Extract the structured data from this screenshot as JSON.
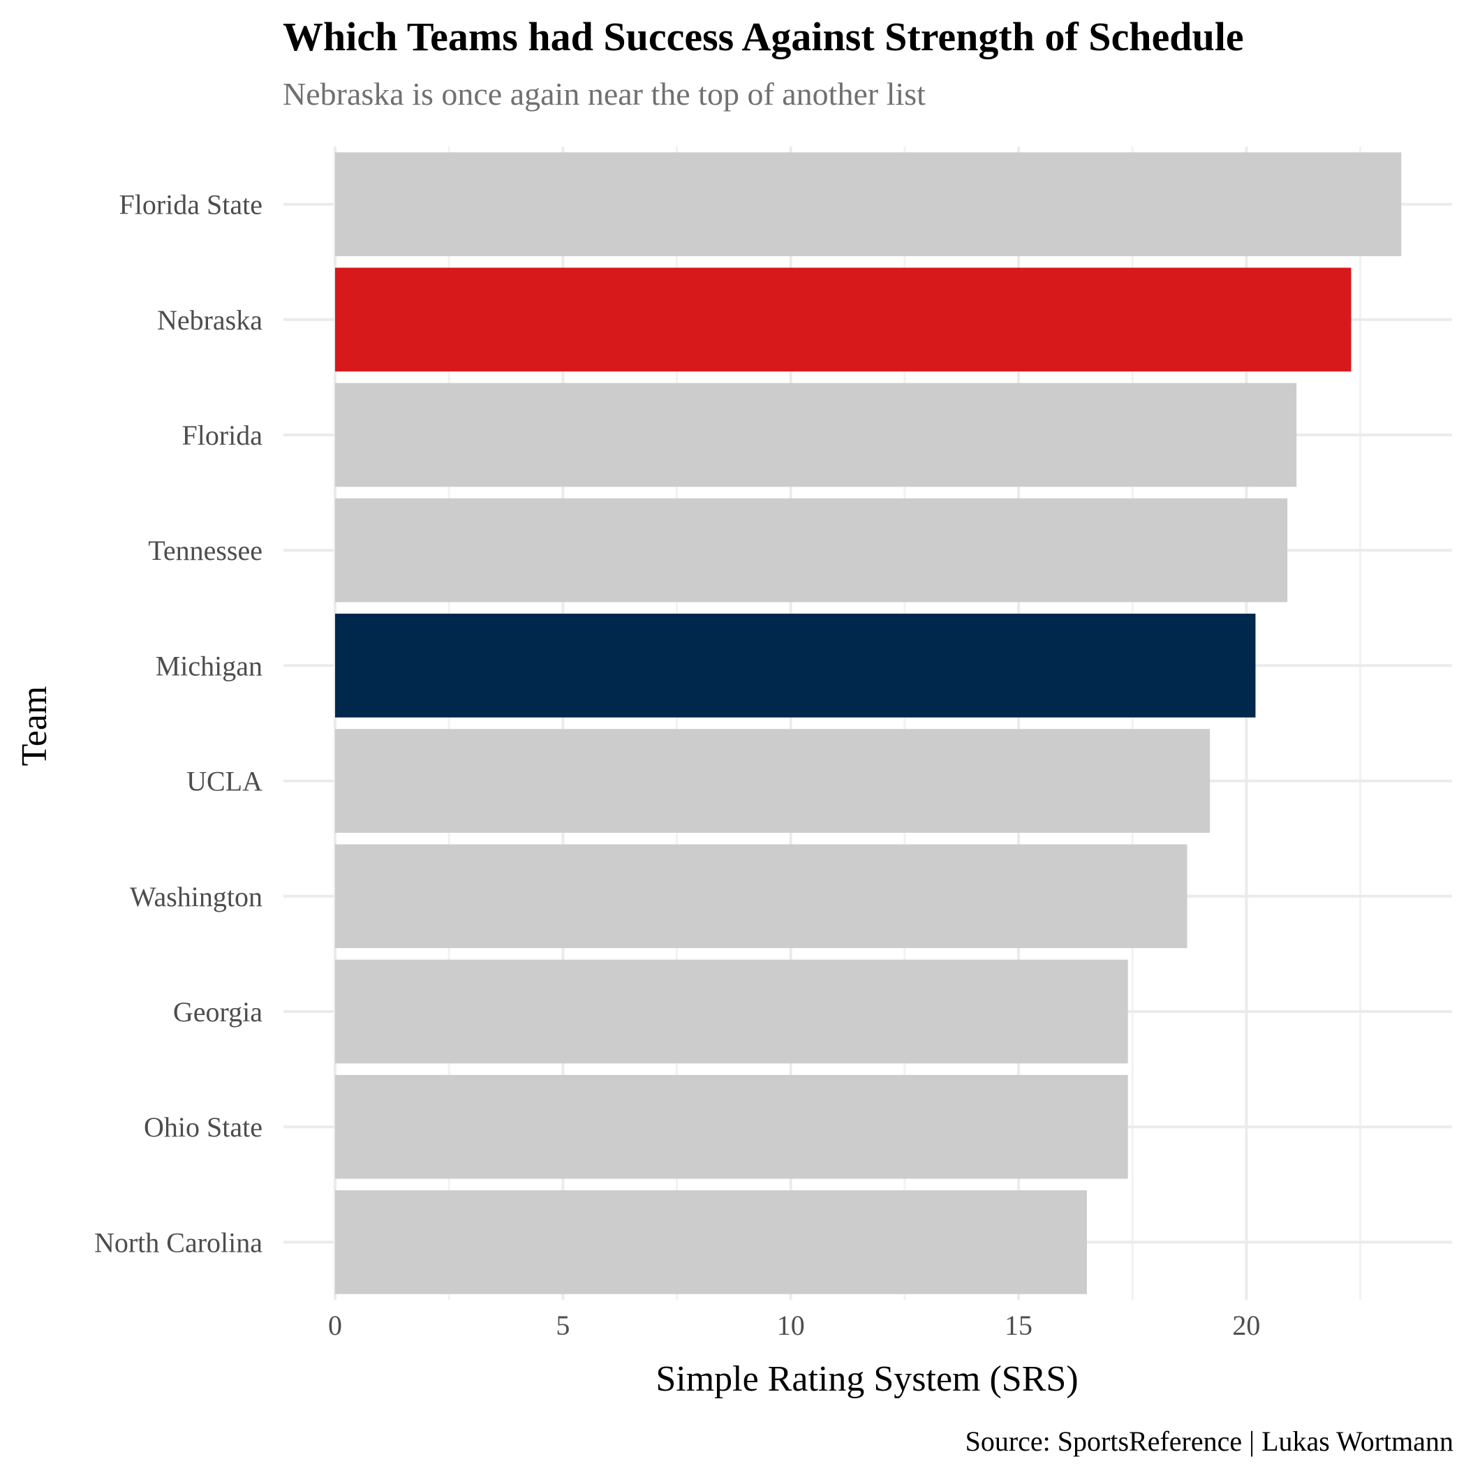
{
  "chart_data": {
    "type": "bar",
    "orientation": "horizontal",
    "title": "Which Teams had Success Against Strength of Schedule",
    "subtitle": "Nebraska is once again near the top of another list",
    "xlabel": "Simple Rating System (SRS)",
    "ylabel": "Team",
    "caption": "Source: SportsReference | Lukas Wortmann",
    "xlim": [
      0,
      24.5
    ],
    "xticks": [
      "0",
      "5",
      "10",
      "15",
      "20"
    ],
    "grid": true,
    "legend": "none",
    "categories": [
      "Florida State",
      "Nebraska",
      "Florida",
      "Tennessee",
      "Michigan",
      "UCLA",
      "Washington",
      "Georgia",
      "Ohio State",
      "North Carolina"
    ],
    "values": [
      23.4,
      22.3,
      21.1,
      20.9,
      20.2,
      19.2,
      18.7,
      17.4,
      17.4,
      16.5
    ],
    "colors": [
      "#cccccc",
      "#d7191c",
      "#cccccc",
      "#cccccc",
      "#00274c",
      "#cccccc",
      "#cccccc",
      "#cccccc",
      "#cccccc",
      "#cccccc"
    ]
  }
}
